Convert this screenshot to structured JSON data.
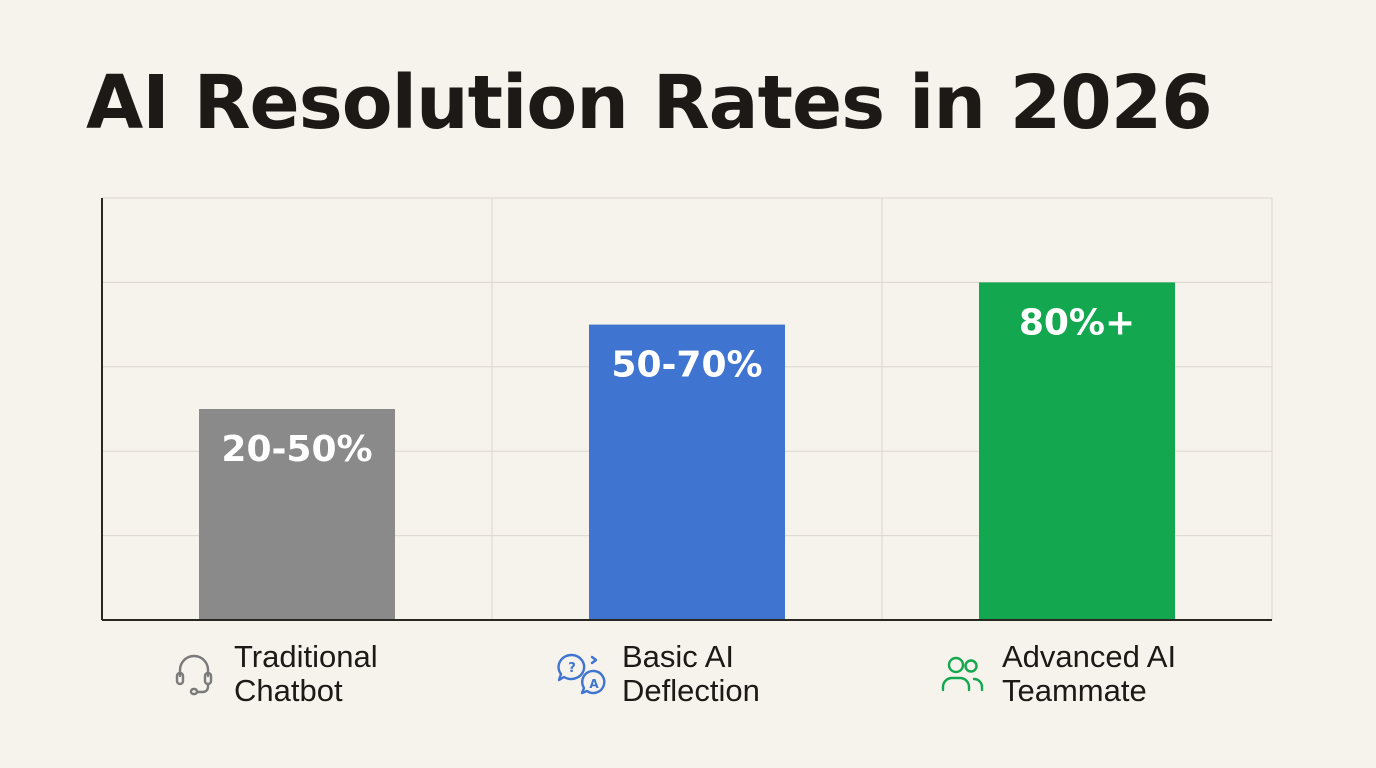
{
  "title": "AI Resolution Rates in 2026",
  "chart_data": {
    "type": "bar",
    "title": "AI Resolution Rates in 2026",
    "xlabel": "",
    "ylabel": "",
    "ylim": [
      0,
      100
    ],
    "grid": true,
    "categories": [
      "Traditional Chatbot",
      "Basic AI Deflection",
      "Advanced AI Teammate"
    ],
    "category_lines": [
      [
        "Traditional",
        "Chatbot"
      ],
      [
        "Basic AI",
        "Deflection"
      ],
      [
        "Advanced AI",
        "Teammate"
      ]
    ],
    "values": [
      50,
      70,
      80
    ],
    "value_labels": [
      "20-50%",
      "50-70%",
      "80%+"
    ],
    "colors": [
      "#8a8a8a",
      "#3f74d1",
      "#13a84f"
    ],
    "icons": [
      "headset-icon",
      "qa-chat-icon",
      "users-icon"
    ]
  }
}
